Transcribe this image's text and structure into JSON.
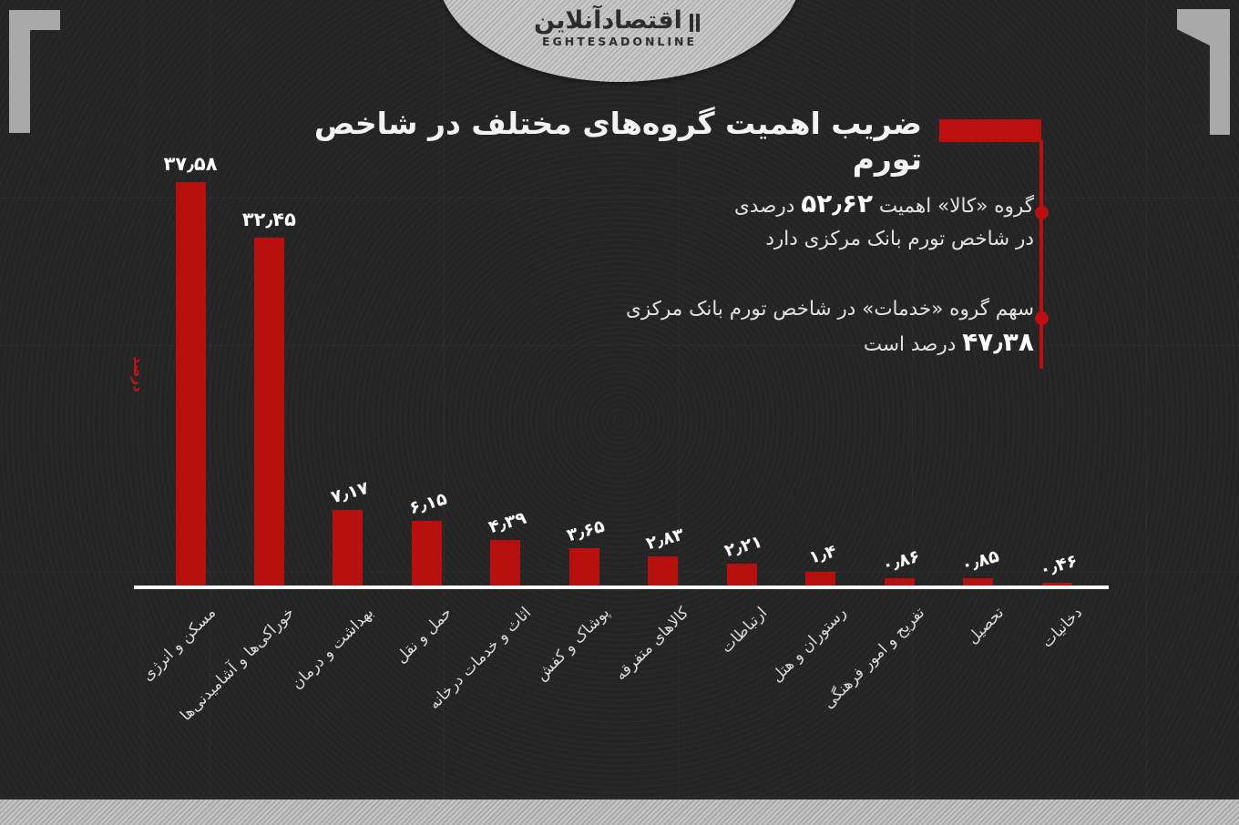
{
  "logo": {
    "persian": "اقتصادآنلاین",
    "latin": "EGHTESADONLINE"
  },
  "title": {
    "text": "ضریب اهمیت گروه‌های مختلف در شاخص تورم"
  },
  "annotations": [
    {
      "line1_prefix": "گروه «کالا» اهمیت ",
      "value": "۵۲٫۶۲",
      "line1_suffix": " درصدی",
      "line2": "در شاخص تورم بانک مرکزی دارد"
    },
    {
      "line1": "سهم گروه «خدمات» در شاخص تورم بانک مرکزی",
      "value": "۴۷٫۳۸",
      "line2_suffix": " درصد است"
    }
  ],
  "colors": {
    "bar_red": "#b8100f",
    "accent_red": "#bb0f10",
    "background": "#242424",
    "axis_white": "#fdfdfd",
    "label_gray": "#dcdcdc"
  },
  "chart_data": {
    "type": "bar",
    "title": "ضریب اهمیت گروه‌های مختلف در شاخص تورم",
    "xlabel": "",
    "ylabel": "درصد",
    "ylim": [
      0,
      40
    ],
    "grid": "faint",
    "legend": "none",
    "categories": [
      "مسکن و انرژی",
      "خوراکی‌ها و آشامیدنی‌ها",
      "بهداشت و درمان",
      "حمل و نقل",
      "اثاث و خدمات درخانه",
      "پوشاک و کفش",
      "کالاهای متفرقه",
      "ارتباطات",
      "رستوران و هتل",
      "تفریح و امور فرهنگی",
      "تحصیل",
      "دخانیات"
    ],
    "values": [
      37.58,
      32.45,
      7.17,
      6.15,
      4.39,
      3.65,
      2.83,
      2.21,
      1.4,
      0.86,
      0.85,
      0.46
    ],
    "value_labels": [
      "۳۷٫۵۸",
      "۳۲٫۴۵",
      "۷٫۱۷",
      "۶٫۱۵",
      "۴٫۳۹",
      "۳٫۶۵",
      "۲٫۸۳",
      "۲٫۲۱",
      "۱٫۴",
      "۰٫۸۶",
      "۰٫۸۵",
      "۰٫۴۶"
    ]
  }
}
